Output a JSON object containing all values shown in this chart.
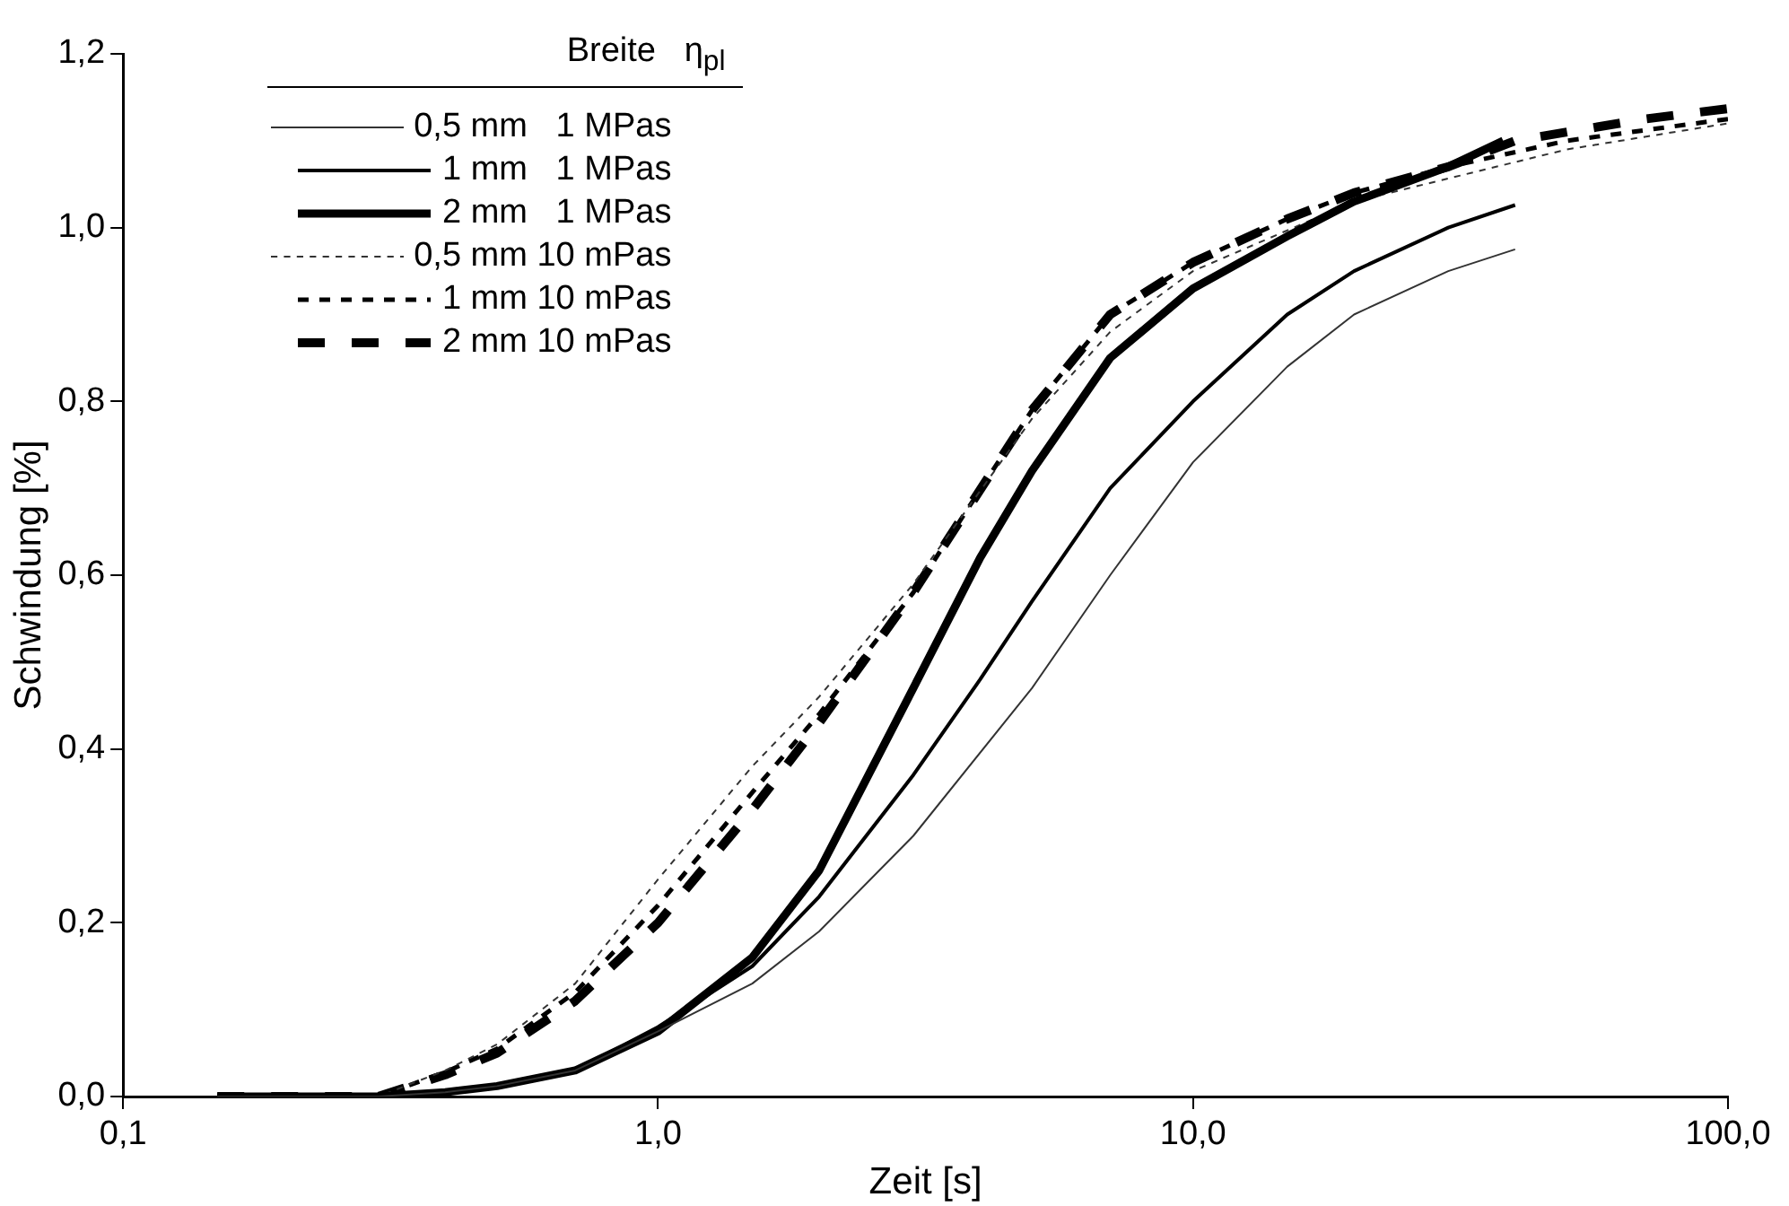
{
  "chart_data": {
    "type": "line",
    "xlabel": "Zeit [s]",
    "ylabel": "Schwindung [%]",
    "legend_title": "Breite   η$_{pl}$",
    "legend": "top left",
    "grid": false,
    "log": "x",
    "marker": "none",
    "xlim": [
      0.1,
      100
    ],
    "xticks": [
      {
        "value": 0.1,
        "label": "0,1"
      },
      {
        "value": 1,
        "label": "1,0"
      },
      {
        "value": 10,
        "label": "10,0"
      },
      {
        "value": 100,
        "label": "100,0"
      }
    ],
    "ylim": [
      0,
      1.2
    ],
    "yticks": [
      {
        "value": 0,
        "label": "0,0"
      },
      {
        "value": 0.2,
        "label": "0,2"
      },
      {
        "value": 0.4,
        "label": "0,4"
      },
      {
        "value": 0.6,
        "label": "0,6"
      },
      {
        "value": 0.8,
        "label": "0,8"
      },
      {
        "value": 1,
        "label": "1,0"
      },
      {
        "value": 1.2,
        "label": "1,2"
      }
    ],
    "series": [
      {
        "name": "0,5 mm   1 MPas",
        "color": "#333333",
        "line_style": "solid",
        "x": [
          0.15,
          0.3,
          0.4,
          0.5,
          0.7,
          1,
          1.5,
          2,
          3,
          5,
          7,
          10,
          15,
          20,
          30,
          40
        ],
        "values": [
          0,
          0,
          0.005,
          0.012,
          0.03,
          0.075,
          0.13,
          0.19,
          0.3,
          0.47,
          0.6,
          0.73,
          0.84,
          0.9,
          0.95,
          0.975
        ]
      },
      {
        "name": "1 mm   1 MPas",
        "color": "#000000",
        "line_style": "solid",
        "x": [
          0.15,
          0.3,
          0.4,
          0.5,
          0.7,
          1,
          1.5,
          2,
          3,
          4,
          5,
          7,
          10,
          15,
          20,
          30,
          40
        ],
        "values": [
          0,
          0,
          0.005,
          0.012,
          0.03,
          0.08,
          0.15,
          0.23,
          0.37,
          0.48,
          0.57,
          0.7,
          0.8,
          0.9,
          0.95,
          1,
          1.026
        ]
      },
      {
        "name": "2 mm   1 MPas",
        "color": "#000000",
        "line_style": "solid",
        "x": [
          0.15,
          0.3,
          0.4,
          0.5,
          0.7,
          1,
          1.5,
          2,
          3,
          4,
          5,
          7,
          10,
          15,
          20,
          30,
          38
        ],
        "values": [
          0,
          0,
          0.005,
          0.012,
          0.03,
          0.075,
          0.16,
          0.26,
          0.47,
          0.62,
          0.72,
          0.85,
          0.93,
          0.99,
          1.03,
          1.07,
          1.1
        ]
      },
      {
        "name": "0,5 mm 10 mPas",
        "color": "#333333",
        "line_style": "dashed",
        "x": [
          0.15,
          0.3,
          0.4,
          0.5,
          0.7,
          1,
          1.5,
          2,
          3,
          5,
          7,
          10,
          20,
          50,
          100
        ],
        "values": [
          0,
          0,
          0.03,
          0.06,
          0.13,
          0.25,
          0.38,
          0.46,
          0.59,
          0.78,
          0.88,
          0.95,
          1.03,
          1.09,
          1.12
        ]
      },
      {
        "name": "1 mm 10 mPas",
        "color": "#000000",
        "line_style": "dashed",
        "x": [
          0.15,
          0.3,
          0.4,
          0.5,
          0.7,
          1,
          1.5,
          2,
          3,
          5,
          7,
          10,
          15,
          20,
          30,
          50,
          100
        ],
        "values": [
          0,
          0,
          0.028,
          0.055,
          0.12,
          0.22,
          0.35,
          0.44,
          0.58,
          0.79,
          0.9,
          0.96,
          1.01,
          1.04,
          1.07,
          1.1,
          1.125
        ]
      },
      {
        "name": "2 mm 10 mPas",
        "color": "#000000",
        "line_style": "dashed",
        "x": [
          0.15,
          0.3,
          0.4,
          0.5,
          0.7,
          1,
          1.5,
          2,
          3,
          5,
          7,
          10,
          15,
          20,
          30,
          40,
          50,
          70,
          100
        ],
        "values": [
          0,
          0,
          0.025,
          0.05,
          0.11,
          0.2,
          0.33,
          0.43,
          0.58,
          0.79,
          0.9,
          0.96,
          1.01,
          1.04,
          1.07,
          1.1,
          1.11,
          1.125,
          1.137
        ]
      }
    ]
  }
}
